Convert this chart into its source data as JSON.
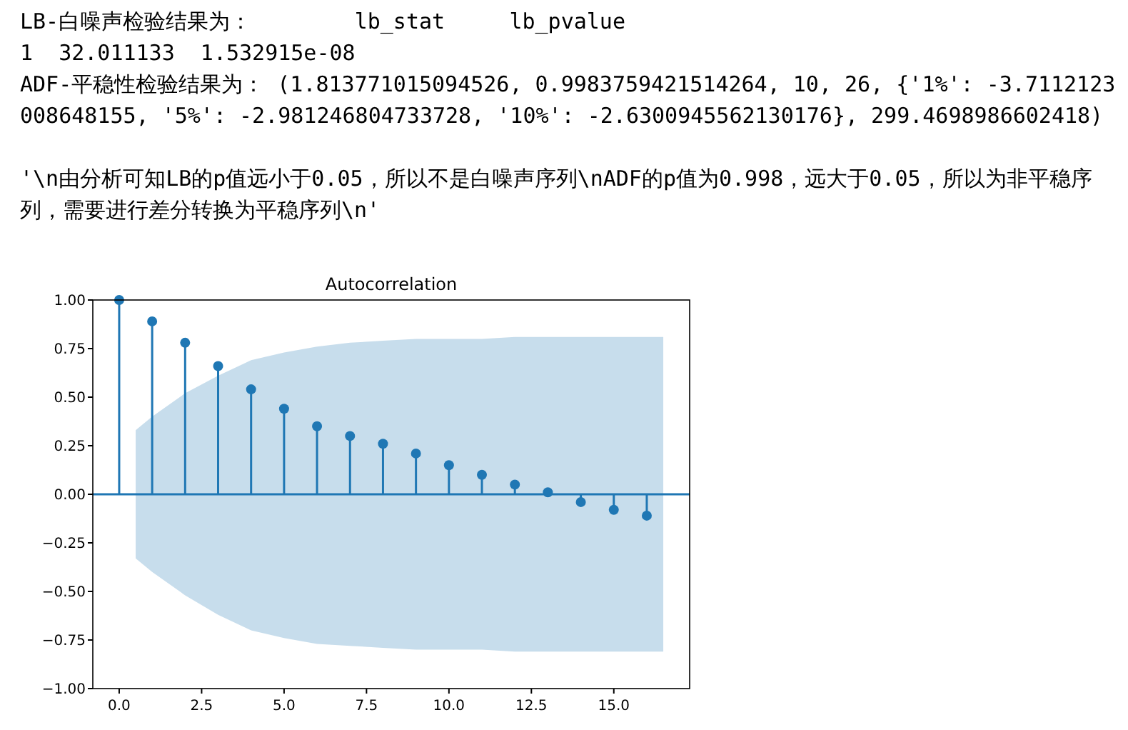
{
  "chart_data": {
    "type": "lollipop",
    "title": "Autocorrelation",
    "annotations": [
      "LB-白噪声检验结果为：        lb_stat     lb_pvalue",
      "1  32.011133  1.532915e-08",
      "ADF-平稳性检验结果为： (1.813771015094526, 0.9983759421514264, 10, 26, {'1%': -3.7112123008648155, '5%': -2.981246804733728, '10%': -2.6300945562130176}, 299.4698986602418)",
      "'\\n由分析可知LB的p值远小于0.05，所以不是白噪声序列\\nADF的p值为0.998，远大于0.05，所以为非平稳序列，需要进行差分转换为平稳序列\\n'"
    ],
    "series": [
      {
        "color": "#1f77b4",
        "x": [
          0,
          0.5,
          1,
          2,
          3,
          4,
          5,
          6,
          7,
          8,
          9,
          10,
          11,
          12,
          13,
          14,
          15,
          16,
          16.5
        ],
        "values": [
          1.0,
          null,
          0.89,
          0.78,
          0.66,
          0.54,
          0.44,
          0.35,
          0.3,
          0.26,
          0.21,
          0.15,
          0.1,
          0.05,
          0.01,
          -0.04,
          -0.08,
          -0.11,
          null
        ],
        "upper": [
          null,
          0.33,
          0.4,
          0.52,
          0.61,
          0.69,
          0.73,
          0.76,
          0.78,
          0.79,
          0.8,
          0.8,
          0.8,
          0.81,
          0.81,
          0.81,
          0.81,
          0.81,
          0.81
        ],
        "lower": [
          null,
          -0.33,
          -0.4,
          -0.52,
          -0.62,
          -0.7,
          -0.74,
          -0.77,
          -0.78,
          -0.79,
          -0.8,
          -0.8,
          -0.8,
          -0.81,
          -0.81,
          -0.81,
          -0.81,
          -0.81,
          -0.81
        ]
      }
    ],
    "ref_lines": [
      {
        "axis": "y",
        "value": 0,
        "color": "#1f77b4"
      }
    ],
    "marker": "circle",
    "xlim": [
      -0.8,
      17.3
    ],
    "xticks": [
      {
        "value": 0,
        "label": "0.0"
      },
      {
        "value": 2.5,
        "label": "2.5"
      },
      {
        "value": 5,
        "label": "5.0"
      },
      {
        "value": 7.5,
        "label": "7.5"
      },
      {
        "value": 10,
        "label": "10.0"
      },
      {
        "value": 12.5,
        "label": "12.5"
      },
      {
        "value": 15,
        "label": "15.0"
      }
    ],
    "ylim": [
      -1,
      1
    ],
    "yticks": [
      {
        "value": -1,
        "label": "−1.00"
      },
      {
        "value": -0.75,
        "label": "−0.75"
      },
      {
        "value": -0.5,
        "label": "−0.50"
      },
      {
        "value": -0.25,
        "label": "−0.25"
      },
      {
        "value": 0,
        "label": "0.00"
      },
      {
        "value": 0.25,
        "label": "0.25"
      },
      {
        "value": 0.5,
        "label": "0.50"
      },
      {
        "value": 0.75,
        "label": "0.75"
      },
      {
        "value": 1,
        "label": "1.00"
      }
    ],
    "grid": false
  }
}
